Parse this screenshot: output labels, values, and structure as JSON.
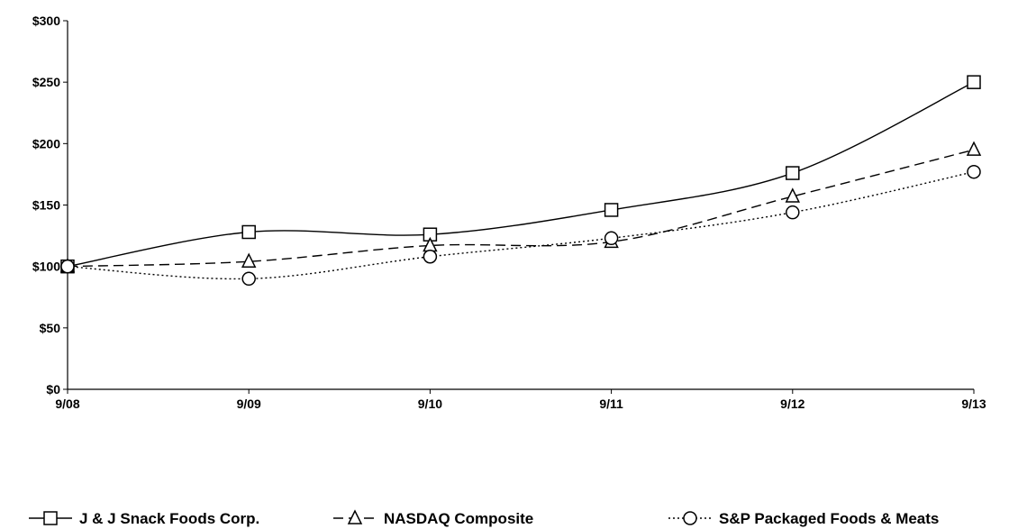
{
  "chart_data": {
    "type": "line",
    "title": "",
    "xlabel": "",
    "ylabel": "",
    "categories": [
      "9/08",
      "9/09",
      "9/10",
      "9/11",
      "9/12",
      "9/13"
    ],
    "ylim": [
      0,
      300
    ],
    "yticks": [
      0,
      50,
      100,
      150,
      200,
      250,
      300
    ],
    "ytick_labels": [
      "$0",
      "$50",
      "$100",
      "$150",
      "$200",
      "$250",
      "$300"
    ],
    "grid": false,
    "legend_position": "bottom",
    "series": [
      {
        "name": "J & J Snack Foods Corp.",
        "values": [
          100,
          128,
          126,
          146,
          176,
          250
        ],
        "marker": "square",
        "line_style": "solid",
        "color": "#000000"
      },
      {
        "name": "NASDAQ Composite",
        "values": [
          100,
          104,
          117,
          120,
          157,
          195
        ],
        "marker": "triangle",
        "line_style": "dashed",
        "color": "#000000"
      },
      {
        "name": "S&P Packaged Foods & Meats",
        "values": [
          100,
          90,
          108,
          123,
          144,
          177
        ],
        "marker": "circle",
        "line_style": "dotted",
        "color": "#000000"
      }
    ]
  }
}
